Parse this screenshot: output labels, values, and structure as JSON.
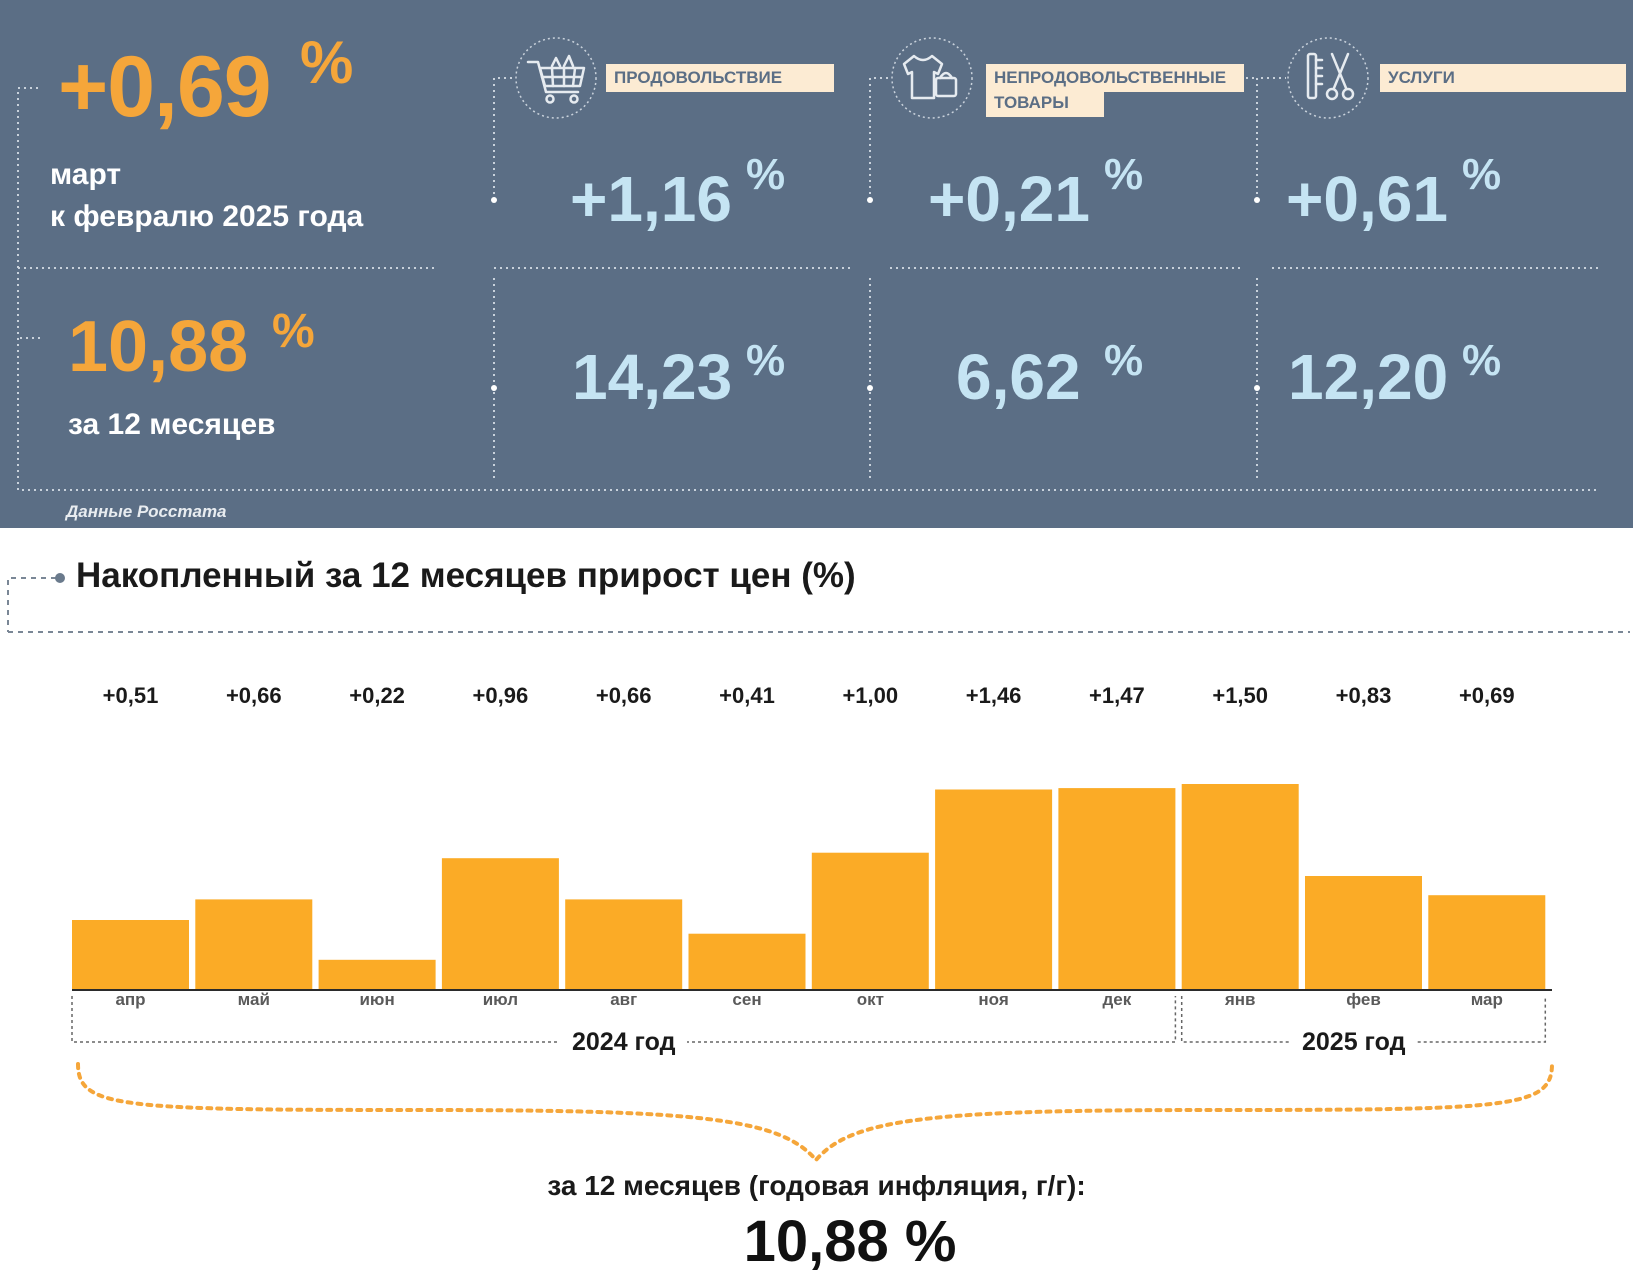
{
  "summary": {
    "monthly_value": "+0,69",
    "monthly_unit": "%",
    "monthly_label_line1": "март",
    "monthly_label_line2": "к февралю 2025 года",
    "annual_value": "10,88",
    "annual_unit": "%",
    "annual_label": "за 12 месяцев",
    "source": "Данные Росстата"
  },
  "categories": [
    {
      "tag_lines": [
        "ПРОДОВОЛЬСТВИЕ"
      ],
      "icon": "shopping-cart-icon",
      "monthly": "+1,16",
      "annual": "14,23",
      "unit": "%"
    },
    {
      "tag_lines": [
        "НЕПРОДОВОЛЬСТВЕННЫЕ",
        "ТОВАРЫ"
      ],
      "icon": "clothes-bag-icon",
      "monthly": "+0,21",
      "annual": "6,62",
      "unit": "%"
    },
    {
      "tag_lines": [
        "УСЛУГИ"
      ],
      "icon": "scissors-comb-icon",
      "monthly": "+0,61",
      "annual": "12,20",
      "unit": "%"
    }
  ],
  "colors": {
    "panel": "#5b6e85",
    "orange": "#f5a63a",
    "bar": "#fbab26",
    "light_blue": "#c5e4f3",
    "tag_bg": "#fcebd3"
  },
  "chart_data": {
    "type": "bar",
    "title": "Накопленный за 12 месяцев прирост цен (%)",
    "categories": [
      "апр",
      "май",
      "июн",
      "июл",
      "авг",
      "сен",
      "окт",
      "ноя",
      "дек",
      "янв",
      "фев",
      "мар"
    ],
    "values": [
      0.51,
      0.66,
      0.22,
      0.96,
      0.66,
      0.41,
      1.0,
      1.46,
      1.47,
      1.5,
      0.83,
      0.69
    ],
    "value_labels": [
      "+0,51",
      "+0,66",
      "+0,22",
      "+0,96",
      "+0,66",
      "+0,41",
      "+1,00",
      "+1,46",
      "+1,47",
      "+1,50",
      "+0,83",
      "+0,69"
    ],
    "year_groups": [
      {
        "label": "2024 год",
        "from": 0,
        "to": 8
      },
      {
        "label": "2025 год",
        "from": 9,
        "to": 11
      }
    ],
    "ylim": [
      0,
      1.5
    ],
    "grid": false,
    "annual_label": "за 12 месяцев (годовая инфляция, г/г):",
    "annual_value": "10,88 %"
  }
}
